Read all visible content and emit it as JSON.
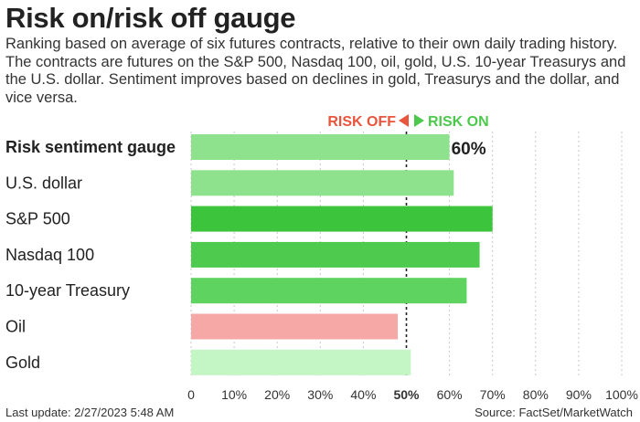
{
  "header": {
    "title": "Risk on/risk off gauge",
    "subtitle": "Ranking based on average of six futures contracts, relative to their own daily trading history. The contracts are futures on the S&P 500, Nasdaq 100, oil, gold, U.S. 10-year Treasurys and the U.S. dollar. Sentiment improves based on declines in gold, Treasurys and the dollar, and vice versa."
  },
  "legend": {
    "risk_off": "RISK OFF",
    "risk_on": "RISK ON",
    "risk_off_color": "#e8553d",
    "risk_on_color": "#4cc94c"
  },
  "footer": {
    "last_update": "Last update: 2/27/2023 5:48 AM",
    "source": "Source: FactSet/MarketWatch"
  },
  "chart_data": {
    "type": "bar",
    "orientation": "horizontal",
    "categories": [
      "Risk sentiment gauge",
      "U.S. dollar",
      "S&P 500",
      "Nasdaq 100",
      "10-year Treasury",
      "Oil",
      "Gold"
    ],
    "values": [
      60,
      61,
      70,
      67,
      64,
      48,
      51
    ],
    "colors": [
      "#8ee28e",
      "#8ee28e",
      "#3cc43c",
      "#4ecb4e",
      "#5fd35f",
      "#f5a8a5",
      "#c4f5c4"
    ],
    "value_labels": [
      "60%",
      "",
      "",
      "",
      "",
      "",
      ""
    ],
    "xlim": [
      0,
      100
    ],
    "x_ticks": [
      "0",
      "10%",
      "20%",
      "30%",
      "40%",
      "50%",
      "60%",
      "70%",
      "80%",
      "90%",
      "100%"
    ],
    "center_line": 50,
    "grid": true
  }
}
